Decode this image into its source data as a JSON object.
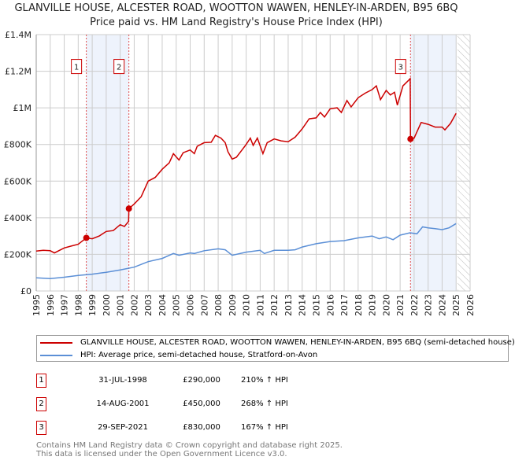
{
  "header": {
    "title": "GLANVILLE HOUSE, ALCESTER ROAD, WOOTTON WAWEN, HENLEY-IN-ARDEN, B95 6BQ",
    "subtitle": "Price paid vs. HM Land Registry's House Price Index (HPI)"
  },
  "chart_data": {
    "type": "line",
    "title": "GLANVILLE HOUSE, ALCESTER ROAD, WOOTTON WAWEN, HENLEY-IN-ARDEN, B95 6BQ",
    "subtitle": "Price paid vs. HM Land Registry's House Price Index (HPI)",
    "xlim": [
      1995,
      2026
    ],
    "ylim": [
      0,
      1400000
    ],
    "x_ticks": [
      "1995",
      "1996",
      "1997",
      "1998",
      "1999",
      "2000",
      "2001",
      "2002",
      "2003",
      "2004",
      "2005",
      "2006",
      "2007",
      "2008",
      "2009",
      "2010",
      "2011",
      "2012",
      "2013",
      "2014",
      "2015",
      "2016",
      "2017",
      "2018",
      "2019",
      "2020",
      "2021",
      "2022",
      "2023",
      "2024",
      "2025",
      "2026"
    ],
    "y_ticks": [
      {
        "v": 0,
        "label": "£0"
      },
      {
        "v": 200000,
        "label": "£200K"
      },
      {
        "v": 400000,
        "label": "£400K"
      },
      {
        "v": 600000,
        "label": "£600K"
      },
      {
        "v": 800000,
        "label": "£800K"
      },
      {
        "v": 1000000,
        "label": "£1M"
      },
      {
        "v": 1200000,
        "label": "£1.2M"
      },
      {
        "v": 1400000,
        "label": "£1.4M"
      }
    ],
    "grid": true,
    "shaded_ranges": [
      [
        1998.58,
        2001.62
      ],
      [
        2021.74,
        2025
      ]
    ],
    "hatched_range": [
      2025.1,
      2026
    ],
    "series": [
      {
        "name": "GLANVILLE HOUSE, ALCESTER ROAD, WOOTTON WAWEN, HENLEY-IN-ARDEN, B95 6BQ (semi-detached house)",
        "color": "#cc0000",
        "x": [
          1995,
          1995.5,
          1996,
          1996.3,
          1997,
          1997.5,
          1998,
          1998.58,
          1999,
          1999.5,
          2000,
          2000.5,
          2001,
          2001.3,
          2001.6,
          2001.62,
          2002,
          2002.5,
          2003,
          2003.5,
          2004,
          2004.5,
          2004.8,
          2005.2,
          2005.5,
          2006,
          2006.3,
          2006.5,
          2007,
          2007.5,
          2007.8,
          2008.2,
          2008.5,
          2008.7,
          2009,
          2009.3,
          2009.7,
          2010,
          2010.3,
          2010.5,
          2010.8,
          2011.2,
          2011.5,
          2012,
          2012.5,
          2013,
          2013.5,
          2014,
          2014.5,
          2015,
          2015.3,
          2015.6,
          2016,
          2016.5,
          2016.8,
          2017.2,
          2017.5,
          2018,
          2018.5,
          2019,
          2019.3,
          2019.6,
          2020,
          2020.3,
          2020.6,
          2020.8,
          2021.2,
          2021.6,
          2021.72,
          2021.74,
          2022,
          2022.5,
          2023,
          2023.5,
          2024,
          2024.2,
          2024.6,
          2025
        ],
        "y": [
          218000,
          222000,
          220000,
          208000,
          235000,
          245000,
          255000,
          290000,
          285000,
          300000,
          325000,
          330000,
          362000,
          352000,
          380000,
          450000,
          475000,
          515000,
          600000,
          620000,
          665000,
          700000,
          750000,
          715000,
          755000,
          770000,
          750000,
          790000,
          810000,
          812000,
          850000,
          835000,
          810000,
          760000,
          720000,
          730000,
          770000,
          800000,
          835000,
          795000,
          835000,
          750000,
          810000,
          830000,
          820000,
          815000,
          840000,
          885000,
          940000,
          945000,
          975000,
          950000,
          995000,
          1000000,
          975000,
          1040000,
          1005000,
          1055000,
          1080000,
          1100000,
          1120000,
          1045000,
          1095000,
          1070000,
          1085000,
          1015000,
          1120000,
          1150000,
          1160000,
          830000,
          835000,
          920000,
          910000,
          895000,
          895000,
          880000,
          915000,
          970000
        ]
      },
      {
        "name": "HPI: Average price, semi-detached house, Stratford-on-Avon",
        "color": "#5b8fd6",
        "x": [
          1995,
          1996,
          1997,
          1998,
          1999,
          2000,
          2001,
          2002,
          2003,
          2004,
          2004.8,
          2005.2,
          2006,
          2006.3,
          2007,
          2008,
          2008.5,
          2009,
          2010,
          2011,
          2011.3,
          2012,
          2013,
          2013.5,
          2014,
          2015,
          2016,
          2017,
          2018,
          2019,
          2019.5,
          2020,
          2020.5,
          2021,
          2021.7,
          2022.2,
          2022.6,
          2023,
          2023.5,
          2024,
          2024.5,
          2025
        ],
        "y": [
          72000,
          68000,
          75000,
          85000,
          92000,
          102000,
          115000,
          130000,
          160000,
          178000,
          205000,
          195000,
          208000,
          205000,
          220000,
          230000,
          225000,
          195000,
          212000,
          222000,
          205000,
          222000,
          222000,
          225000,
          240000,
          258000,
          270000,
          275000,
          290000,
          300000,
          285000,
          295000,
          280000,
          305000,
          318000,
          312000,
          350000,
          345000,
          340000,
          335000,
          345000,
          368000
        ]
      }
    ],
    "sales": [
      {
        "id": "1",
        "x": 1998.58,
        "price": 290000
      },
      {
        "id": "2",
        "x": 2001.62,
        "price": 450000
      },
      {
        "id": "3",
        "x": 2021.74,
        "price": 830000
      }
    ]
  },
  "legend": {
    "items": [
      {
        "label": "GLANVILLE HOUSE, ALCESTER ROAD, WOOTTON WAWEN, HENLEY-IN-ARDEN, B95 6BQ (semi-detached house)",
        "color": "#cc0000"
      },
      {
        "label": "HPI: Average price, semi-detached house, Stratford-on-Avon",
        "color": "#5b8fd6"
      }
    ]
  },
  "transactions": [
    {
      "id": "1",
      "date": "31-JUL-1998",
      "price": "£290,000",
      "hpi": "210% ↑ HPI"
    },
    {
      "id": "2",
      "date": "14-AUG-2001",
      "price": "£450,000",
      "hpi": "268% ↑ HPI"
    },
    {
      "id": "3",
      "date": "29-SEP-2021",
      "price": "£830,000",
      "hpi": "167% ↑ HPI"
    }
  ],
  "footer": {
    "line1": "Contains HM Land Registry data © Crown copyright and database right 2025.",
    "line2": "This data is licensed under the Open Government Licence v3.0."
  }
}
